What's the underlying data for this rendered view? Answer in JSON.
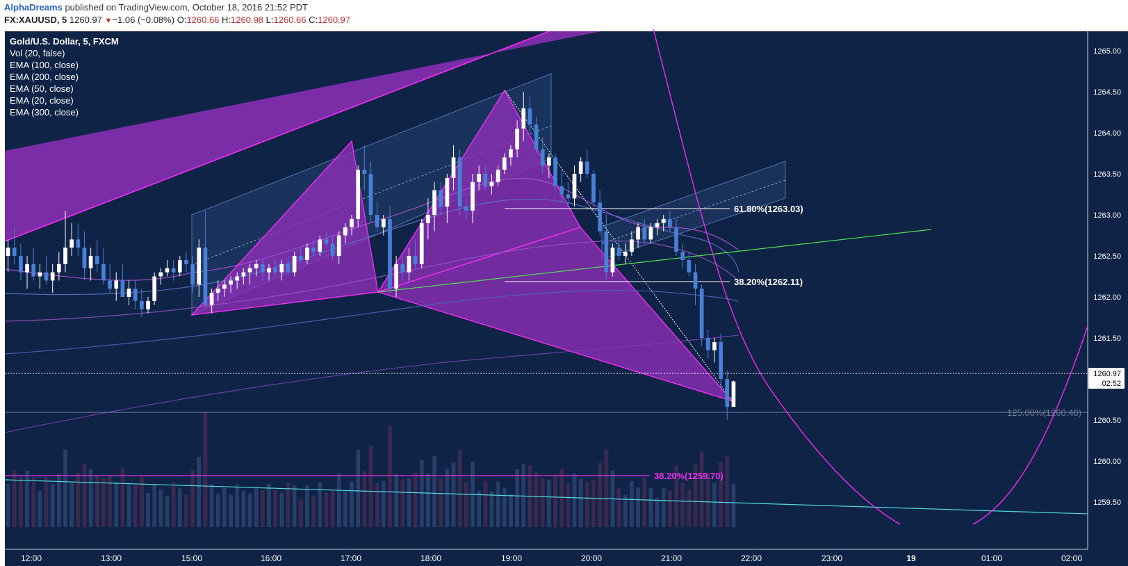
{
  "header": {
    "author": "AlphaDreams",
    "published_text": "published on TradingView.com, October 18, 2016 21:52 PDT",
    "symbol": "FX:XAUUSD, 5",
    "last": "1260.97",
    "change_arrow": "▼",
    "change": "−1.06 (−0.08%)",
    "open_label": "O:",
    "open": "1260.66",
    "high_label": "H:",
    "high": "1260.98",
    "low_label": "L:",
    "low": "1260.66",
    "close_label": "C:",
    "close": "1260.97"
  },
  "legend": {
    "title": "Gold/U.S. Dollar, 5, FXCM",
    "items": [
      "Vol (20, false)",
      "EMA (100, close)",
      "EMA (200, close)",
      "EMA (50, close)",
      "EMA (20, close)",
      "EMA (300, close)"
    ]
  },
  "colors": {
    "background": "#0f2346",
    "up_candle": "#ffffff",
    "down_candle": "#4a7fd6",
    "pattern_fill": "#8e2fb8",
    "channel_line": "#ee2ef0",
    "fib_line": "#ffffff",
    "trend_green": "#4fe04f",
    "trend_cyan": "#4fd6e0"
  },
  "chart_data": {
    "type": "candlestick",
    "price_axis": {
      "ticks": [
        "1265.00",
        "1264.50",
        "1264.00",
        "1263.50",
        "1263.00",
        "1262.50",
        "1262.00",
        "1261.50",
        "1260.50",
        "1260.00",
        "1259.50"
      ],
      "range": [
        1259.1,
        1265.3
      ],
      "last_price": "1260.97",
      "countdown": "02:52"
    },
    "time_axis": {
      "ticks": [
        "12:00",
        "13:00",
        "15:00",
        "16:00",
        "17:00",
        "18:00",
        "19:00",
        "20:00",
        "21:00",
        "22:00",
        "23:00",
        "19",
        "01:00",
        "02:00"
      ]
    },
    "fib_levels": [
      {
        "label": "61.80%(1263.03)",
        "price": 1263.03
      },
      {
        "label": "38.20%(1262.11)",
        "price": 1262.11
      },
      {
        "label": "125.00%(1260.48)",
        "price": 1260.48
      },
      {
        "label": "38.20%(1259.70)",
        "price": 1259.7
      }
    ],
    "pattern_points": [
      {
        "time": "15:00",
        "price": 1261.7
      },
      {
        "time": "17:00",
        "price": 1263.88
      },
      {
        "time": "17:20",
        "price": 1261.97
      },
      {
        "time": "18:55",
        "price": 1264.5
      },
      {
        "time": "21:45",
        "price": 1260.6
      }
    ],
    "candles": [
      [
        1262.5,
        1262.7,
        1262.3,
        1262.6
      ],
      [
        1262.6,
        1262.85,
        1262.4,
        1262.5
      ],
      [
        1262.5,
        1262.65,
        1262.2,
        1262.3
      ],
      [
        1262.3,
        1262.5,
        1262.1,
        1262.4
      ],
      [
        1262.4,
        1262.6,
        1262.2,
        1262.25
      ],
      [
        1262.25,
        1262.4,
        1262.1,
        1262.3
      ],
      [
        1262.3,
        1262.5,
        1262.15,
        1262.2
      ],
      [
        1262.2,
        1262.4,
        1262.05,
        1262.3
      ],
      [
        1262.3,
        1262.55,
        1262.2,
        1262.4
      ],
      [
        1262.4,
        1263.05,
        1262.3,
        1262.6
      ],
      [
        1262.6,
        1262.9,
        1262.5,
        1262.7
      ],
      [
        1262.7,
        1262.9,
        1262.5,
        1262.6
      ],
      [
        1262.6,
        1262.8,
        1262.2,
        1262.35
      ],
      [
        1262.35,
        1262.6,
        1262.2,
        1262.5
      ],
      [
        1262.5,
        1262.7,
        1262.3,
        1262.4
      ],
      [
        1262.4,
        1262.6,
        1262.15,
        1262.2
      ],
      [
        1262.2,
        1262.4,
        1262.05,
        1262.1
      ],
      [
        1262.1,
        1262.3,
        1261.95,
        1262.2
      ],
      [
        1262.2,
        1262.4,
        1262.0,
        1262.0
      ],
      [
        1262.0,
        1262.2,
        1261.9,
        1262.1
      ],
      [
        1262.1,
        1262.2,
        1261.85,
        1261.95
      ],
      [
        1261.95,
        1262.1,
        1261.75,
        1261.85
      ],
      [
        1261.85,
        1262.0,
        1261.8,
        1261.95
      ],
      [
        1261.95,
        1262.3,
        1261.9,
        1262.25
      ],
      [
        1262.25,
        1262.35,
        1262.15,
        1262.3
      ],
      [
        1262.3,
        1262.45,
        1262.25,
        1262.35
      ],
      [
        1262.35,
        1262.45,
        1262.2,
        1262.3
      ],
      [
        1262.3,
        1262.5,
        1262.25,
        1262.45
      ],
      [
        1262.45,
        1262.55,
        1262.3,
        1262.4
      ],
      [
        1262.4,
        1262.5,
        1262.05,
        1262.15
      ],
      [
        1262.15,
        1262.7,
        1262.0,
        1262.6
      ],
      [
        1262.6,
        1263.05,
        1261.9,
        1261.9
      ],
      [
        1261.9,
        1262.1,
        1261.8,
        1262.05
      ],
      [
        1262.05,
        1262.2,
        1261.95,
        1262.1
      ],
      [
        1262.1,
        1262.2,
        1262.0,
        1262.15
      ],
      [
        1262.15,
        1262.25,
        1262.05,
        1262.2
      ],
      [
        1262.2,
        1262.3,
        1262.1,
        1262.25
      ],
      [
        1262.25,
        1262.35,
        1262.15,
        1262.3
      ],
      [
        1262.3,
        1262.4,
        1262.15,
        1262.35
      ],
      [
        1262.35,
        1262.45,
        1262.25,
        1262.4
      ],
      [
        1262.4,
        1262.45,
        1262.2,
        1262.3
      ],
      [
        1262.3,
        1262.4,
        1262.2,
        1262.35
      ],
      [
        1262.35,
        1262.45,
        1262.25,
        1262.3
      ],
      [
        1262.3,
        1262.45,
        1262.2,
        1262.4
      ],
      [
        1262.4,
        1262.5,
        1262.25,
        1262.3
      ],
      [
        1262.3,
        1262.55,
        1262.25,
        1262.5
      ],
      [
        1262.5,
        1262.6,
        1262.4,
        1262.45
      ],
      [
        1262.45,
        1262.65,
        1262.4,
        1262.6
      ],
      [
        1262.6,
        1262.7,
        1262.5,
        1262.55
      ],
      [
        1262.55,
        1262.75,
        1262.5,
        1262.7
      ],
      [
        1262.7,
        1262.8,
        1262.6,
        1262.65
      ],
      [
        1262.65,
        1262.75,
        1262.45,
        1262.5
      ],
      [
        1262.5,
        1262.8,
        1262.4,
        1262.75
      ],
      [
        1262.75,
        1262.9,
        1262.65,
        1262.85
      ],
      [
        1262.85,
        1263.0,
        1262.75,
        1262.95
      ],
      [
        1262.95,
        1263.6,
        1262.85,
        1263.55
      ],
      [
        1263.55,
        1263.85,
        1263.3,
        1263.5
      ],
      [
        1263.5,
        1263.65,
        1262.9,
        1263.0
      ],
      [
        1263.0,
        1263.15,
        1262.8,
        1262.85
      ],
      [
        1262.85,
        1263.0,
        1262.75,
        1262.95
      ],
      [
        1262.95,
        1263.1,
        1262.05,
        1262.1
      ],
      [
        1262.1,
        1262.5,
        1262.0,
        1262.4
      ],
      [
        1262.4,
        1262.5,
        1262.2,
        1262.3
      ],
      [
        1262.3,
        1262.6,
        1262.2,
        1262.5
      ],
      [
        1262.5,
        1262.7,
        1262.35,
        1262.4
      ],
      [
        1262.4,
        1262.95,
        1262.35,
        1262.9
      ],
      [
        1262.9,
        1263.2,
        1262.7,
        1263.0
      ],
      [
        1263.0,
        1263.4,
        1262.8,
        1263.3
      ],
      [
        1263.3,
        1263.4,
        1263.0,
        1263.1
      ],
      [
        1263.1,
        1263.5,
        1262.9,
        1263.45
      ],
      [
        1263.45,
        1263.85,
        1263.3,
        1263.7
      ],
      [
        1263.7,
        1263.8,
        1263.0,
        1263.1
      ],
      [
        1263.1,
        1263.2,
        1262.95,
        1263.05
      ],
      [
        1263.05,
        1263.5,
        1262.9,
        1263.4
      ],
      [
        1263.4,
        1263.6,
        1263.3,
        1263.5
      ],
      [
        1263.5,
        1263.6,
        1263.3,
        1263.35
      ],
      [
        1263.35,
        1263.5,
        1263.25,
        1263.4
      ],
      [
        1263.4,
        1263.6,
        1263.35,
        1263.55
      ],
      [
        1263.55,
        1263.75,
        1263.5,
        1263.7
      ],
      [
        1263.7,
        1263.85,
        1263.6,
        1263.8
      ],
      [
        1263.8,
        1264.15,
        1263.7,
        1264.05
      ],
      [
        1264.05,
        1264.5,
        1263.9,
        1264.3
      ],
      [
        1264.3,
        1264.45,
        1264.0,
        1264.1
      ],
      [
        1264.1,
        1264.2,
        1263.75,
        1263.8
      ],
      [
        1263.8,
        1263.95,
        1263.5,
        1263.6
      ],
      [
        1263.6,
        1263.75,
        1263.45,
        1263.7
      ],
      [
        1263.7,
        1263.75,
        1263.3,
        1263.35
      ],
      [
        1263.35,
        1263.55,
        1263.15,
        1263.25
      ],
      [
        1263.25,
        1263.4,
        1263.1,
        1263.2
      ],
      [
        1263.2,
        1263.6,
        1263.1,
        1263.5
      ],
      [
        1263.5,
        1263.7,
        1263.4,
        1263.65
      ],
      [
        1263.65,
        1263.8,
        1263.45,
        1263.5
      ],
      [
        1263.5,
        1263.55,
        1263.1,
        1263.15
      ],
      [
        1263.15,
        1263.3,
        1262.75,
        1262.8
      ],
      [
        1262.8,
        1263.0,
        1262.2,
        1262.3
      ],
      [
        1262.3,
        1262.65,
        1262.25,
        1262.6
      ],
      [
        1262.6,
        1262.7,
        1262.45,
        1262.5
      ],
      [
        1262.5,
        1262.65,
        1262.4,
        1262.55
      ],
      [
        1262.55,
        1262.8,
        1262.5,
        1262.7
      ],
      [
        1262.7,
        1262.9,
        1262.6,
        1262.85
      ],
      [
        1262.85,
        1262.95,
        1262.65,
        1262.7
      ],
      [
        1262.7,
        1262.9,
        1262.65,
        1262.85
      ],
      [
        1262.85,
        1262.95,
        1262.75,
        1262.9
      ],
      [
        1262.9,
        1263.0,
        1262.8,
        1262.95
      ],
      [
        1262.95,
        1263.05,
        1262.8,
        1262.85
      ],
      [
        1262.85,
        1262.95,
        1262.5,
        1262.55
      ],
      [
        1262.55,
        1262.65,
        1262.35,
        1262.45
      ],
      [
        1262.45,
        1262.55,
        1262.25,
        1262.3
      ],
      [
        1262.3,
        1262.4,
        1261.9,
        1262.1
      ],
      [
        1262.1,
        1262.15,
        1261.4,
        1261.5
      ],
      [
        1261.5,
        1261.6,
        1261.25,
        1261.35
      ],
      [
        1261.35,
        1261.5,
        1261.2,
        1261.45
      ],
      [
        1261.45,
        1261.55,
        1260.9,
        1261.0
      ],
      [
        1261.0,
        1261.1,
        1260.5,
        1260.66
      ],
      [
        1260.66,
        1260.98,
        1260.66,
        1260.97
      ]
    ]
  }
}
